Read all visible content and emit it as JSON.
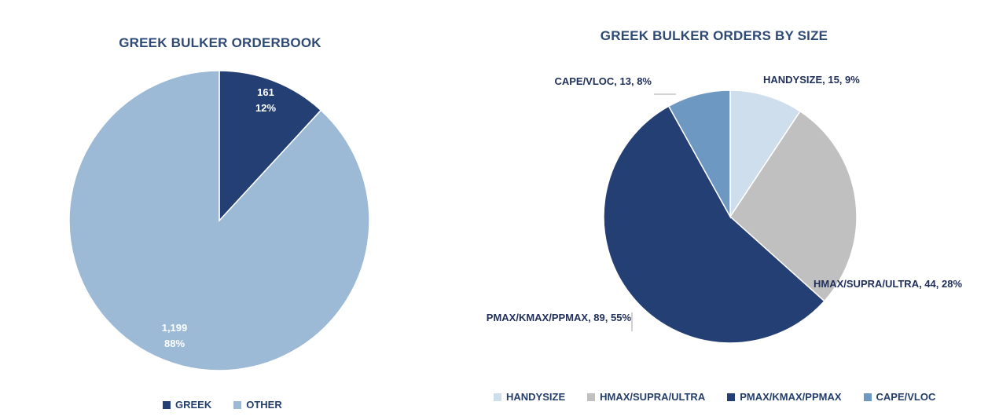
{
  "chart_data": [
    {
      "type": "pie",
      "title": "GREEK BULKER ORDERBOOK",
      "slices": [
        {
          "name": "GREEK",
          "value": 161,
          "percent": 12,
          "value_label": "161",
          "percent_label": "12%",
          "color": "#243f74"
        },
        {
          "name": "OTHER",
          "value": 1199,
          "percent": 88,
          "value_label": "1,199",
          "percent_label": "88%",
          "color": "#9cb9d6"
        }
      ],
      "legend_position": "bottom",
      "label_color": "#ffffff"
    },
    {
      "type": "pie",
      "title": "GREEK BULKER ORDERS BY SIZE",
      "slices": [
        {
          "name": "HANDYSIZE",
          "value": 15,
          "percent": 9,
          "label": "HANDYSIZE, 15, 9%",
          "color": "#cfdeec"
        },
        {
          "name": "HMAX/SUPRA/ULTRA",
          "value": 44,
          "percent": 28,
          "label": "HMAX/SUPRA/ULTRA, 44, 28%",
          "color": "#c0c0c0"
        },
        {
          "name": "PMAX/KMAX/PPMAX",
          "value": 89,
          "percent": 55,
          "label": "PMAX/KMAX/PPMAX,  89, 55%",
          "color": "#243f74"
        },
        {
          "name": "CAPE/VLOC",
          "value": 13,
          "percent": 8,
          "label": "CAPE/VLOC, 13, 8%",
          "color": "#6d98c2"
        }
      ],
      "legend_position": "bottom",
      "label_color": "#1f2f5a"
    }
  ]
}
